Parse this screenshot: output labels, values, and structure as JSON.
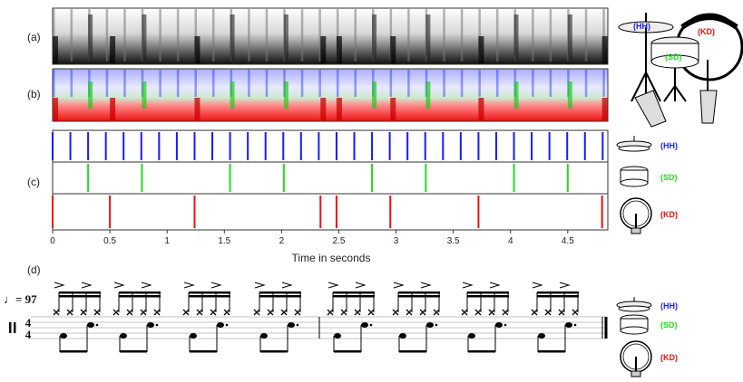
{
  "panel_labels": {
    "a": "(a)",
    "b": "(b)",
    "c": "(c)",
    "d": "(d)"
  },
  "instruments": [
    {
      "key": "HH",
      "label": "(HH)",
      "color": "#1a1aff"
    },
    {
      "key": "SD",
      "label": "(SD)",
      "color": "#22dd22"
    },
    {
      "key": "KD",
      "label": "(KD)",
      "color": "#ee1111"
    }
  ],
  "notation": {
    "tempo": "♩= 97",
    "time_signature_top": "4",
    "time_signature_bottom": "4"
  },
  "chart_data": {
    "type": "scatter",
    "xlabel": "Time in seconds",
    "xlim": [
      0,
      4.85
    ],
    "xticks": [
      "0",
      "0.5",
      "1",
      "1.5",
      "2",
      "2.5",
      "3",
      "3.5",
      "4",
      "4.5"
    ],
    "series": [
      {
        "name": "(HH)",
        "color": "#1a1aff",
        "onsets": [
          0.0,
          0.155,
          0.31,
          0.465,
          0.62,
          0.775,
          0.93,
          1.085,
          1.24,
          1.395,
          1.55,
          1.705,
          1.86,
          2.015,
          2.17,
          2.325,
          2.48,
          2.635,
          2.79,
          2.945,
          3.1,
          3.255,
          3.41,
          3.565,
          3.72,
          3.875,
          4.03,
          4.185,
          4.34,
          4.495,
          4.65,
          4.805
        ]
      },
      {
        "name": "(SD)",
        "color": "#22dd22",
        "onsets": [
          0.31,
          0.78,
          1.55,
          2.02,
          2.79,
          3.26,
          4.03,
          4.5
        ]
      },
      {
        "name": "(KD)",
        "color": "#ee1111",
        "onsets": [
          0.0,
          0.5,
          1.24,
          2.34,
          2.48,
          2.95,
          3.72,
          4.8
        ]
      }
    ]
  }
}
